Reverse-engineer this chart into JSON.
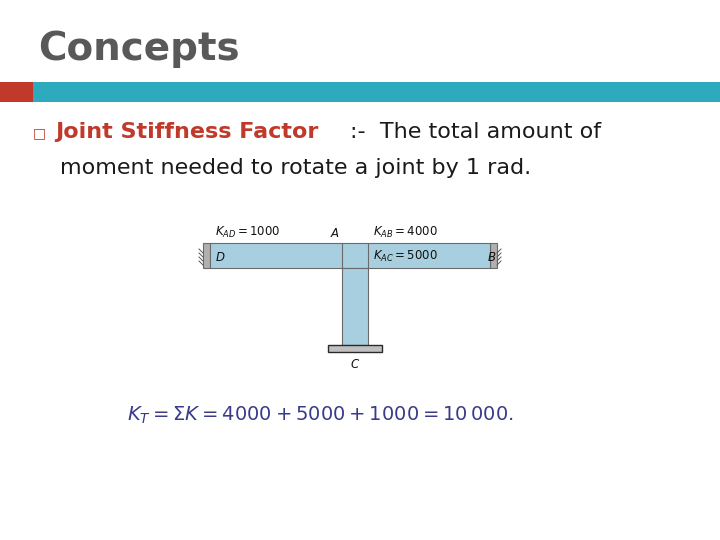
{
  "title": "Concepts",
  "title_color": "#595959",
  "title_fontsize": 28,
  "bar_color_red": "#c0392b",
  "bar_color_teal": "#2eaabf",
  "bullet_color": "#c0392b",
  "bullet_char": "□",
  "text_red": "Joint Stiffness Factor",
  "text_colon": ":-  The total amount of",
  "text_line2": "moment needed to rotate a joint by 1 rad.",
  "text_fontsize": 16,
  "struct_fill": "#a8cfe0",
  "struct_edge": "#6a6a6a",
  "formula_text": "$K_T = \\Sigma K = 4000 + 5000 + 1000 = 10\\,000.$",
  "formula_fontsize": 14,
  "formula_color": "#3a3a8a",
  "background_color": "#ffffff",
  "label_KAD": "$K_{AD} = 1000$",
  "label_A": "$A$",
  "label_KAB": "$K_{AB} = 4000$",
  "label_D": "$D$",
  "label_KAC": "$K_{AC} = 5000$",
  "label_B": "$B$",
  "label_C": "$C$",
  "label_fontsize": 8.5
}
